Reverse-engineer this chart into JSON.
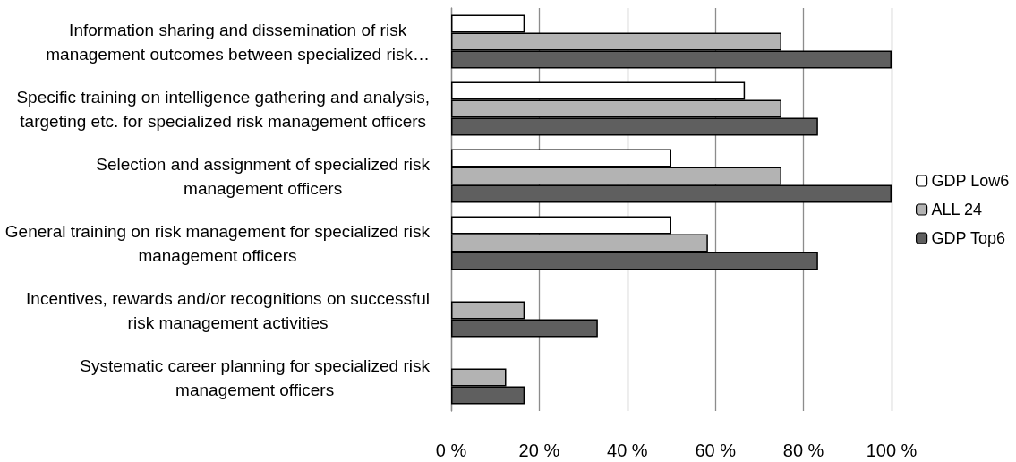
{
  "chart_data": {
    "type": "bar",
    "orientation": "horizontal",
    "categories": [
      "Information sharing and dissemination of risk management outcomes between specialized risk…",
      "Specific training on intelligence gathering and analysis, targeting etc. for specialized risk management officers",
      "Selection and assignment of specialized risk management officers",
      "General training on risk management for specialized risk management officers",
      "Incentives, rewards and/or recognitions on successful risk management activities",
      "Systematic career planning for specialized risk management officers"
    ],
    "series": [
      {
        "name": "GDP Low6",
        "color": "#ffffff",
        "values": [
          16.7,
          66.7,
          50,
          50,
          0,
          0
        ]
      },
      {
        "name": "ALL 24",
        "color": "#b3b3b3",
        "values": [
          75,
          75,
          75,
          58.3,
          16.7,
          12.5
        ]
      },
      {
        "name": "GDP Top6",
        "color": "#5f5f5f",
        "values": [
          100,
          83.3,
          100,
          83.3,
          33.3,
          16.7
        ]
      }
    ],
    "xlim": [
      0,
      100
    ],
    "xticks": [
      {
        "value": 0,
        "label": "0 %"
      },
      {
        "value": 20,
        "label": "20 %"
      },
      {
        "value": 40,
        "label": "40 %"
      },
      {
        "value": 60,
        "label": "60 %"
      },
      {
        "value": 80,
        "label": "80 %"
      },
      {
        "value": 100,
        "label": "100 %"
      }
    ],
    "grid": "x",
    "legend": "right"
  }
}
